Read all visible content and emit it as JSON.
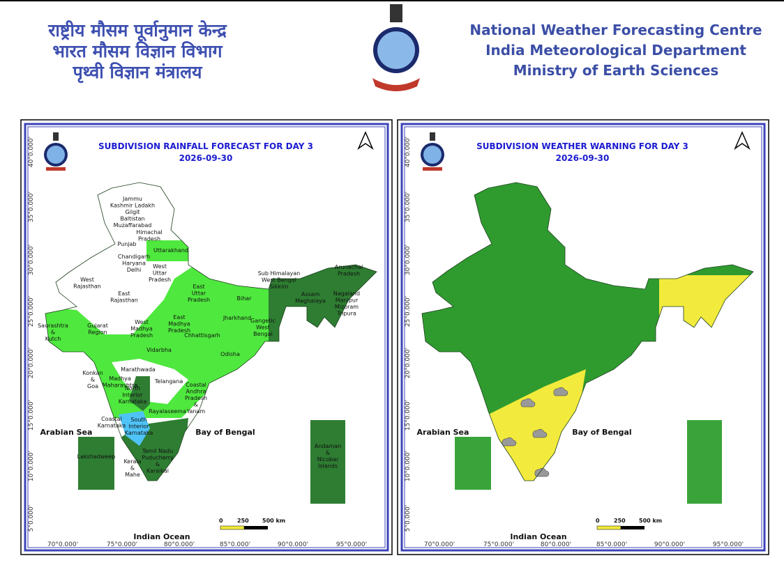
{
  "header": {
    "hindi_lines": [
      "राष्ट्रीय मौसम पूर्वानुमान केन्द्र",
      "भारत मौसम विज्ञान विभाग",
      "पृथ्वी विज्ञान मंत्रालय"
    ],
    "english_lines": [
      "National Weather Forecasting Centre",
      "India Meteorological Department",
      "Ministry of Earth Sciences"
    ]
  },
  "panels": [
    {
      "title": "SUBDIVISION RAINFALL FORECAST FOR DAY 3",
      "date": "2026-09-30",
      "lat_labels": [
        "40°0.000'",
        "35°0.000'",
        "30°0.000'",
        "25°0.000'",
        "20°0.000'",
        "15°0.000'",
        "10°0.000'",
        "5°0.000'"
      ],
      "lon_labels": [
        "70°0.000'",
        "75°0.000'",
        "80°0.000'",
        "85°0.000'",
        "90°0.000'",
        "95°0.000'"
      ],
      "sea_labels": [
        "Arabian Sea",
        "Bay of Bengal",
        "Indian Ocean"
      ],
      "scale_labels": [
        "0",
        "250",
        "500 km"
      ],
      "regions": [
        [
          "Jammu",
          "Kashmir Ladakh",
          "Gilgit",
          "Baltistan",
          "Muzaffarabad"
        ],
        [
          "Himachal",
          "Pradesh"
        ],
        [
          "Punjab"
        ],
        [
          "Uttarakhand"
        ],
        [
          "Chandigarh",
          "Haryana",
          "Delhi"
        ],
        [
          "West",
          "Uttar",
          "Pradesh"
        ],
        [
          "West",
          "Rajasthan"
        ],
        [
          "East",
          "Rajasthan"
        ],
        [
          "East",
          "Uttar",
          "Pradesh"
        ],
        [
          "Bihar"
        ],
        [
          "Sub Himalayan",
          "West Bengal",
          "Sikkim"
        ],
        [
          "Arunachal",
          "Pradesh"
        ],
        [
          "Assam",
          "Meghalaya"
        ],
        [
          "Nagaland",
          "Manipur",
          "Mizoram",
          "Tripura"
        ],
        [
          "Saurashtra",
          "&",
          "Kutch"
        ],
        [
          "Gujarat",
          "Region"
        ],
        [
          "West",
          "Madhya",
          "Pradesh"
        ],
        [
          "East",
          "Madhya",
          "Pradesh"
        ],
        [
          "Jharkhand"
        ],
        [
          "Gangetic",
          "West",
          "Bengal"
        ],
        [
          "Chhattisgarh"
        ],
        [
          "Odisha"
        ],
        [
          "Vidarbha"
        ],
        [
          "Marathwada"
        ],
        [
          "Konkan",
          "&",
          "Goa"
        ],
        [
          "Madhya",
          "Maharashtra"
        ],
        [
          "Telangana"
        ],
        [
          "North",
          "Interior",
          "Karnataka"
        ],
        [
          "Coastal",
          "Andhra",
          "Pradesh",
          "&",
          "Yanam"
        ],
        [
          "Rayalaseema"
        ],
        [
          "Coastal",
          "Karnataka"
        ],
        [
          "South",
          "Interior",
          "Karnataka"
        ],
        [
          "Tamil Nadu",
          "Puducherry",
          "&",
          "Karaikal"
        ],
        [
          "Kerala",
          "&",
          "Mahe"
        ],
        [
          "Lakshadweep"
        ],
        [
          "Andaman",
          "&",
          "Nicobar",
          "Islands"
        ]
      ]
    },
    {
      "title": "SUBDIVISION WEATHER WARNING FOR DAY 3",
      "date": "2026-09-30",
      "lat_labels": [
        "40°0.000'",
        "35°0.000'",
        "30°0.000'",
        "25°0.000'",
        "20°0.000'",
        "15°0.000'",
        "10°0.000'",
        "5°0.000'"
      ],
      "lon_labels": [
        "70°0.000'",
        "75°0.000'",
        "80°0.000'",
        "85°0.000'",
        "90°0.000'",
        "95°0.000'"
      ],
      "sea_labels": [
        "Arabian Sea",
        "Bay of Bengal",
        "Indian Ocean"
      ],
      "scale_labels": [
        "0",
        "250",
        "500 km"
      ]
    }
  ]
}
